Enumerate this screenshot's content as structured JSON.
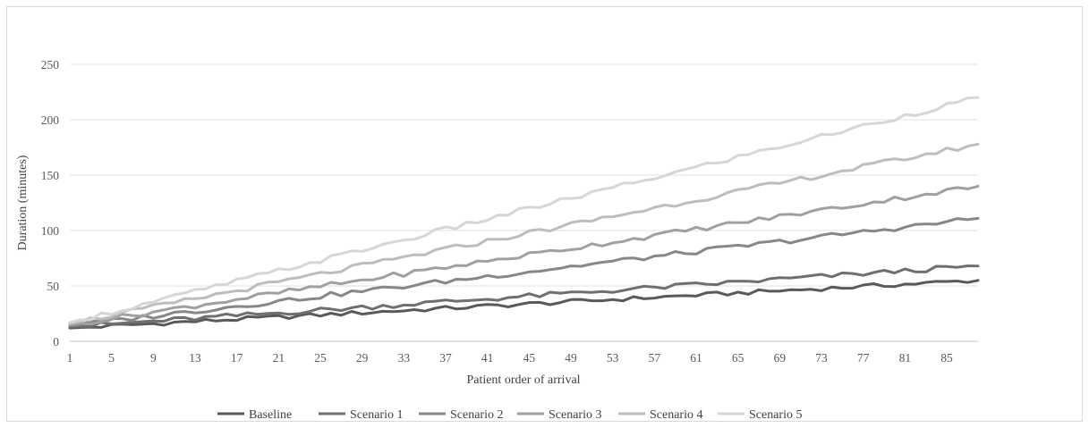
{
  "chart_data": {
    "type": "line",
    "xlabel": "Patient order of arrival",
    "ylabel": "Duration (minutes)",
    "ylim": [
      0,
      250
    ],
    "yticks": [
      0,
      50,
      100,
      150,
      200,
      250
    ],
    "xtick_labels": [
      "1",
      "5",
      "9",
      "13",
      "17",
      "21",
      "25",
      "29",
      "33",
      "37",
      "41",
      "45",
      "49",
      "53",
      "57",
      "61",
      "65",
      "69",
      "73",
      "77",
      "81",
      "85"
    ],
    "x_count": 88,
    "grid": "horizontal",
    "legend_position": "bottom",
    "series": [
      {
        "name": "Baseline",
        "color": "#595959",
        "stroke": "#595959",
        "start": 12,
        "end": 55,
        "noise": 2.0
      },
      {
        "name": "Scenario 1",
        "color": "#6f6f6f",
        "stroke": "#6f6f6f",
        "start": 13,
        "end": 68,
        "noise": 2.4
      },
      {
        "name": "Scenario 2",
        "color": "#878787",
        "stroke": "#878787",
        "start": 14,
        "end": 111,
        "noise": 2.4
      },
      {
        "name": "Scenario 3",
        "color": "#a0a0a0",
        "stroke": "#a0a0a0",
        "start": 15,
        "end": 140,
        "noise": 2.4
      },
      {
        "name": "Scenario 4",
        "color": "#bdbdbd",
        "stroke": "#bdbdbd",
        "start": 16,
        "end": 178,
        "noise": 2.4
      },
      {
        "name": "Scenario 5",
        "color": "#d6d6d6",
        "stroke": "#d6d6d6",
        "start": 17,
        "end": 220,
        "noise": 2.4
      }
    ]
  }
}
